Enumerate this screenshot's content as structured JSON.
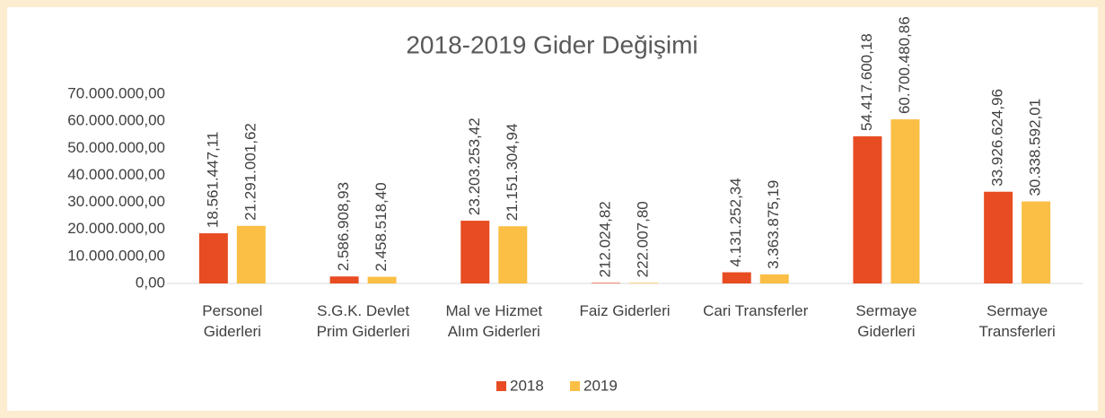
{
  "chart_data": {
    "type": "bar",
    "title": "2018-2019 Gider Değişimi",
    "categories": [
      "Personel Giderleri",
      "S.G.K. Devlet Prim Giderleri",
      "Mal ve Hizmet Alım Giderleri",
      "Faiz Giderleri",
      "Cari Transferler",
      "Sermaye Giderleri",
      "Sermaye Transferleri"
    ],
    "series": [
      {
        "name": "2018",
        "color": "#e84c22",
        "values": [
          18561447.11,
          2586908.93,
          23203253.42,
          212024.82,
          4131252.34,
          54417600.18,
          33926624.96
        ],
        "value_labels": [
          "18.561.447,11",
          "2.586.908,93",
          "23.203.253,42",
          "212.024,82",
          "4.131.252,34",
          "54.417.600,18",
          "33.926.624,96"
        ]
      },
      {
        "name": "2019",
        "color": "#fbbf45",
        "values": [
          21291001.62,
          2458518.4,
          21151304.94,
          222007.8,
          3363875.19,
          60700480.86,
          30338592.01
        ],
        "value_labels": [
          "21.291.001,62",
          "2.458.518,40",
          "21.151.304,94",
          "222.007,80",
          "3.363.875,19",
          "60.700.480,86",
          "30.338.592,01"
        ]
      }
    ],
    "ylim": [
      0,
      70000000
    ],
    "yticks": [
      {
        "value": 0,
        "label": "0,00"
      },
      {
        "value": 10000000,
        "label": "10.000.000,00"
      },
      {
        "value": 20000000,
        "label": "20.000.000,00"
      },
      {
        "value": 30000000,
        "label": "30.000.000,00"
      },
      {
        "value": 40000000,
        "label": "40.000.000,00"
      },
      {
        "value": 50000000,
        "label": "50.000.000,00"
      },
      {
        "value": 60000000,
        "label": "60.000.000,00"
      },
      {
        "value": 70000000,
        "label": "70.000.000,00"
      }
    ],
    "grid": false,
    "legend": "bottom"
  }
}
